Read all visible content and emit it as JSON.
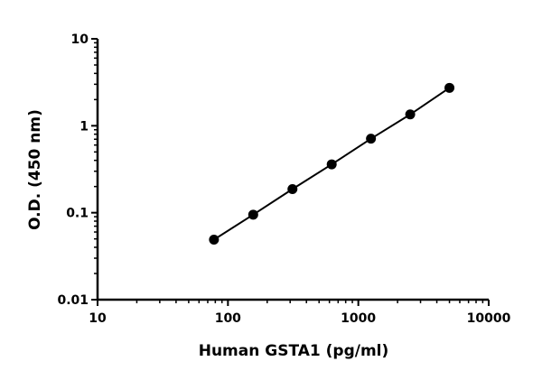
{
  "chart_data": {
    "type": "line",
    "title": "",
    "xlabel": "Human GSTA1 (pg/ml)",
    "ylabel": "O.D. (450 nm)",
    "xscale": "log",
    "yscale": "log",
    "xlim": [
      10,
      10000
    ],
    "ylim": [
      0.01,
      10
    ],
    "x_ticks": [
      10,
      100,
      1000,
      10000
    ],
    "x_tick_labels": [
      "10",
      "100",
      "1000",
      "10000"
    ],
    "y_ticks": [
      0.01,
      0.1,
      1,
      10
    ],
    "y_tick_labels": [
      "0.01",
      "0.1",
      "1",
      "10"
    ],
    "grid": false,
    "legend": "none",
    "series": [
      {
        "x": [
          78.125,
          156.25,
          312.5,
          625,
          1250,
          2500,
          5000
        ],
        "y": [
          0.049,
          0.095,
          0.187,
          0.36,
          0.71,
          1.35,
          2.73
        ],
        "color": "#000000",
        "marker": "circle"
      }
    ]
  }
}
